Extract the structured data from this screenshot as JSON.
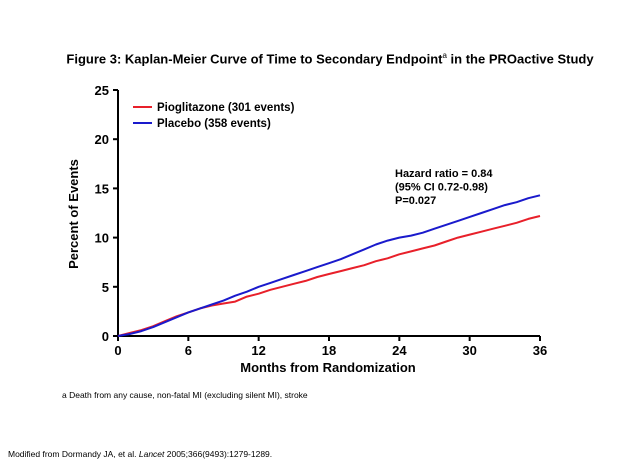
{
  "chart_data": {
    "type": "line",
    "title": "Figure 3: Kaplan-Meier Curve of Time to Secondary Endpoint",
    "title_superscript": "a",
    "title_suffix": " in the PROactive Study",
    "xlabel": "Months from Randomization",
    "ylabel": "Percent of Events",
    "xlim": [
      0,
      36
    ],
    "ylim": [
      0,
      25
    ],
    "xticks": [
      0,
      6,
      12,
      18,
      24,
      30,
      36
    ],
    "yticks": [
      0,
      5,
      10,
      15,
      20,
      25
    ],
    "grid": false,
    "legend_position": "top-left",
    "series": [
      {
        "name": "Pioglitazone (301 events)",
        "color": "#e8202a",
        "x": [
          0,
          1,
          2,
          3,
          4,
          5,
          6,
          7,
          8,
          9,
          10,
          11,
          12,
          13,
          14,
          15,
          16,
          17,
          18,
          19,
          20,
          21,
          22,
          23,
          24,
          25,
          26,
          27,
          28,
          29,
          30,
          31,
          32,
          33,
          34,
          35,
          36
        ],
        "values": [
          0.0,
          0.3,
          0.6,
          1.0,
          1.5,
          2.0,
          2.4,
          2.8,
          3.1,
          3.3,
          3.5,
          4.0,
          4.3,
          4.7,
          5.0,
          5.3,
          5.6,
          6.0,
          6.3,
          6.6,
          6.9,
          7.2,
          7.6,
          7.9,
          8.3,
          8.6,
          8.9,
          9.2,
          9.6,
          10.0,
          10.3,
          10.6,
          10.9,
          11.2,
          11.5,
          11.9,
          12.2
        ]
      },
      {
        "name": "Placebo (358 events)",
        "color": "#1a1acc",
        "x": [
          0,
          1,
          2,
          3,
          4,
          5,
          6,
          7,
          8,
          9,
          10,
          11,
          12,
          13,
          14,
          15,
          16,
          17,
          18,
          19,
          20,
          21,
          22,
          23,
          24,
          25,
          26,
          27,
          28,
          29,
          30,
          31,
          32,
          33,
          34,
          35,
          36
        ],
        "values": [
          0.0,
          0.2,
          0.5,
          0.9,
          1.4,
          1.9,
          2.4,
          2.8,
          3.2,
          3.6,
          4.1,
          4.5,
          5.0,
          5.4,
          5.8,
          6.2,
          6.6,
          7.0,
          7.4,
          7.8,
          8.3,
          8.8,
          9.3,
          9.7,
          10.0,
          10.2,
          10.5,
          10.9,
          11.3,
          11.7,
          12.1,
          12.5,
          12.9,
          13.3,
          13.6,
          14.0,
          14.3
        ]
      }
    ],
    "annotations": [
      "Hazard ratio = 0.84",
      "(95% CI 0.72-0.98)",
      "P=0.027"
    ]
  },
  "footnote": "a Death from any cause, non-fatal MI (excluding silent MI), stroke",
  "source": {
    "prefix": "Modified from Dormandy JA, et al. ",
    "journal": "Lancet",
    "suffix": " 2005;366(9493):1279-1289."
  }
}
